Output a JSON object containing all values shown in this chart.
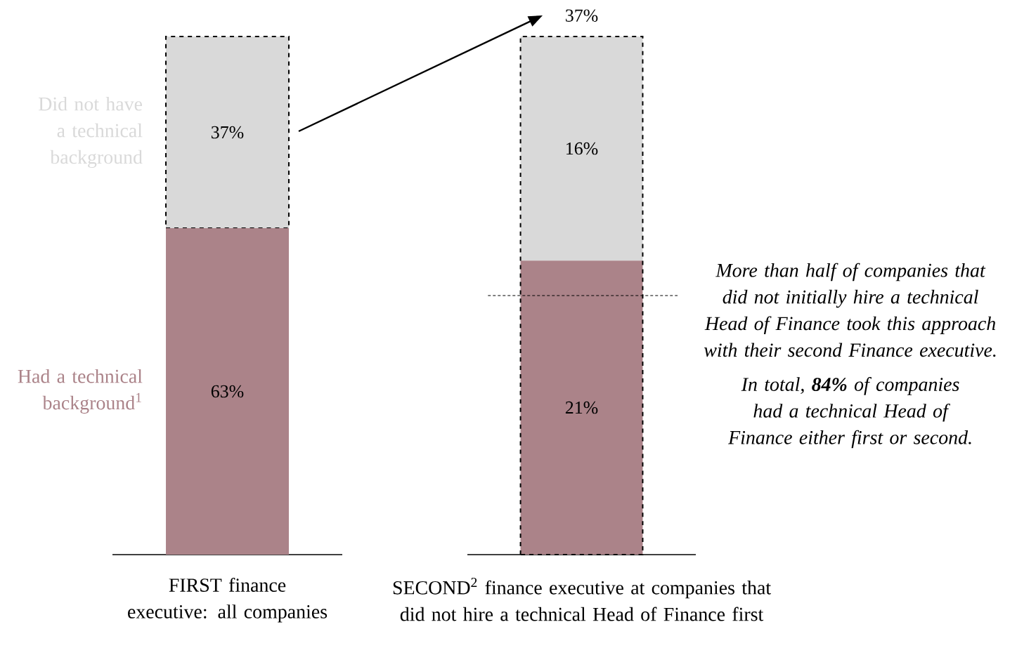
{
  "chart_data": [
    {
      "type": "bar",
      "stacked": true,
      "categories": [
        "FIRST finance executive: all companies"
      ],
      "ylim": [
        0,
        100
      ],
      "tick_labels": "x",
      "series": [
        {
          "name": "Had a technical background$^{1}$",
          "color": "#ab8389",
          "values": [
            63
          ],
          "value_labels": [
            "63%"
          ]
        },
        {
          "name": "Did not have a technical background",
          "color": "#d9d9d9",
          "values": [
            37
          ],
          "value_labels": [
            "37%"
          ]
        }
      ]
    },
    {
      "type": "bar",
      "stacked": true,
      "categories": [
        "SECOND$^{2}$ finance executive at companies that did not hire a technical Head of Finance first"
      ],
      "ylim": [
        0,
        37
      ],
      "tick_labels": "x",
      "totals": [
        "37%"
      ],
      "series": [
        {
          "color": "#ab8389",
          "values": [
            21
          ],
          "value_labels": [
            "21%"
          ]
        },
        {
          "color": "#d9d9d9",
          "values": [
            16
          ],
          "value_labels": [
            "16%"
          ]
        }
      ],
      "ref_lines": [
        {
          "axis": "y",
          "value": 18.5,
          "line_style": "dashed",
          "color": "#000000"
        }
      ],
      "annotations": [
        "More than half of companies that did not initially hire a technical Head of Finance took this approach with their second Finance executive.",
        "In total, **84%** of companies had a technical Head of Finance either first or second."
      ]
    }
  ]
}
